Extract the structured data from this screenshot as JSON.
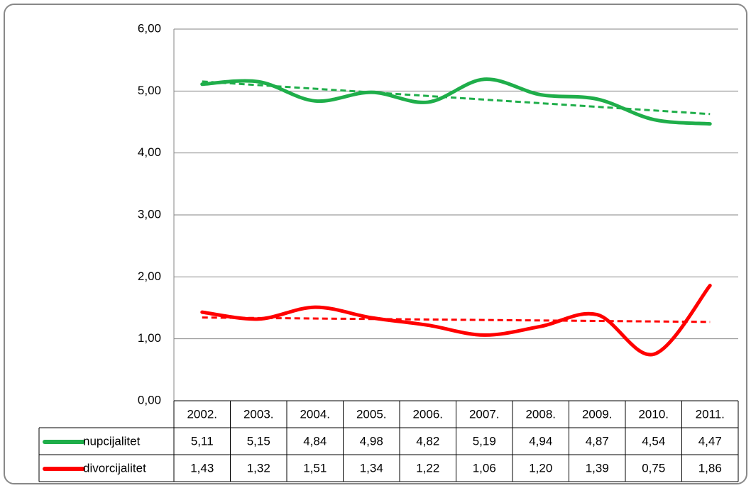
{
  "chart_data": {
    "type": "line",
    "smooth": true,
    "trendline": true,
    "grid": true,
    "categories": [
      "2002.",
      "2003.",
      "2004.",
      "2005.",
      "2006.",
      "2007.",
      "2008.",
      "2009.",
      "2010.",
      "2011."
    ],
    "series": [
      {
        "name": "nupcijalitet",
        "color": "#1fae4a",
        "values": [
          5.11,
          5.15,
          4.84,
          4.98,
          4.82,
          5.19,
          4.94,
          4.87,
          4.54,
          4.47
        ],
        "value_labels": [
          "5,11",
          "5,15",
          "4,84",
          "4,98",
          "4,82",
          "5,19",
          "4,94",
          "4,87",
          "4,54",
          "4,47"
        ]
      },
      {
        "name": "divorcijalitet",
        "color": "#ff0000",
        "values": [
          1.43,
          1.32,
          1.51,
          1.34,
          1.22,
          1.06,
          1.2,
          1.39,
          0.75,
          1.86
        ],
        "value_labels": [
          "1,43",
          "1,32",
          "1,51",
          "1,34",
          "1,22",
          "1,06",
          "1,20",
          "1,39",
          "0,75",
          "1,86"
        ]
      }
    ],
    "ylim": [
      0,
      6
    ],
    "yticks": [
      {
        "value": 0,
        "label": "0,00"
      },
      {
        "value": 1,
        "label": "1,00"
      },
      {
        "value": 2,
        "label": "2,00"
      },
      {
        "value": 3,
        "label": "3,00"
      },
      {
        "value": 4,
        "label": "4,00"
      },
      {
        "value": 5,
        "label": "5,00"
      },
      {
        "value": 6,
        "label": "6,00"
      }
    ]
  }
}
